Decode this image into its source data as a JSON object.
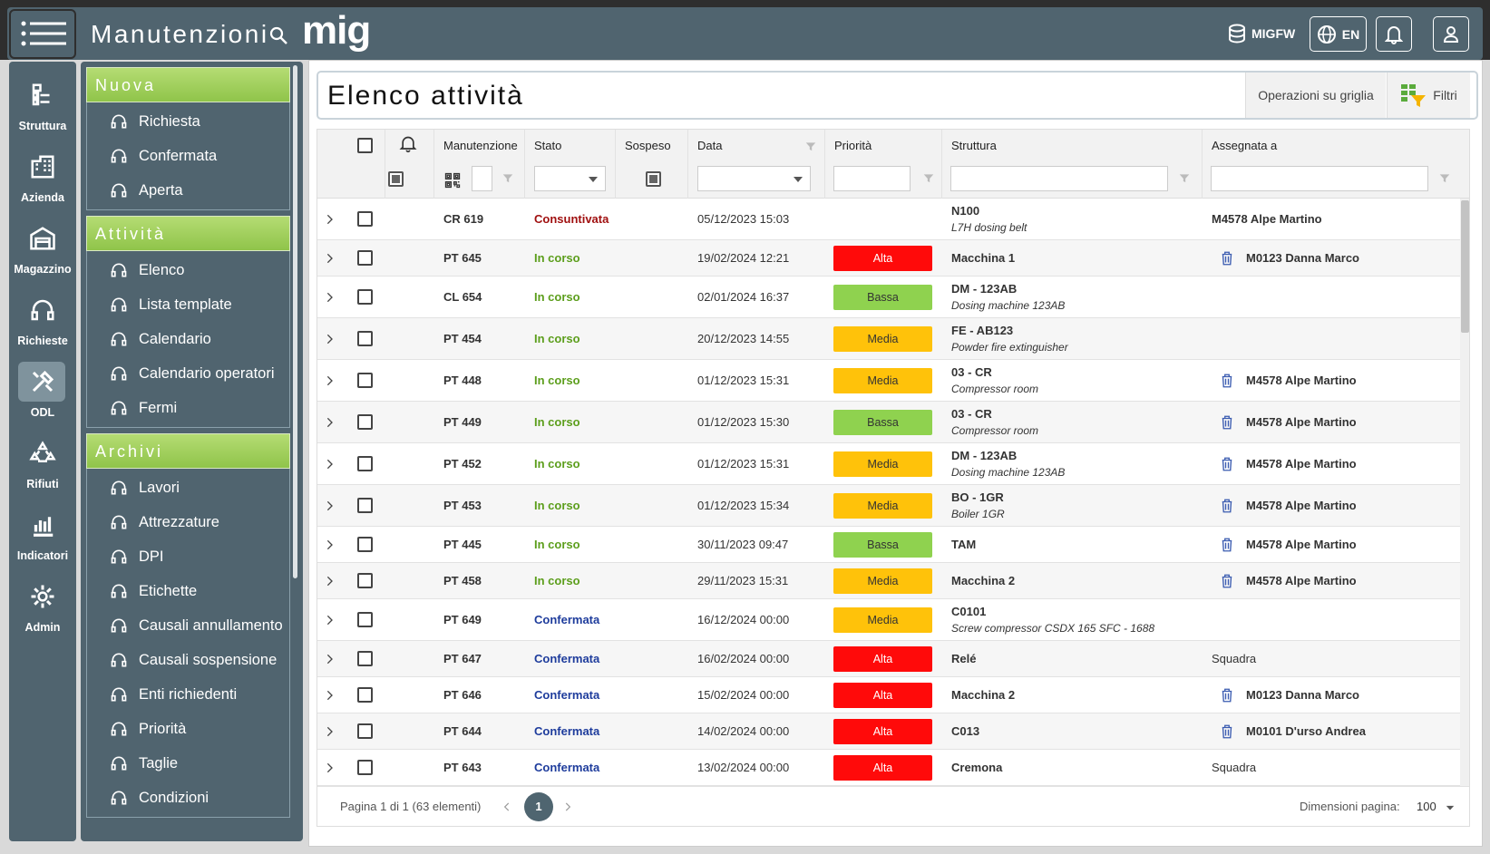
{
  "header": {
    "app_title": "Manutenzioni",
    "logo": "mig",
    "database": "MIGFW",
    "language": "EN"
  },
  "icon_bar": [
    {
      "label": "Struttura"
    },
    {
      "label": "Azienda"
    },
    {
      "label": "Magazzino"
    },
    {
      "label": "Richieste"
    },
    {
      "label": "ODL",
      "active": true
    },
    {
      "label": "Rifiuti"
    },
    {
      "label": "Indicatori"
    },
    {
      "label": "Admin"
    }
  ],
  "menu": [
    {
      "title": "Nuova",
      "items": [
        "Richiesta",
        "Confermata",
        "Aperta"
      ]
    },
    {
      "title": "Attività",
      "items": [
        "Elenco",
        "Lista template",
        "Calendario",
        "Calendario operatori",
        "Fermi"
      ]
    },
    {
      "title": "Archivi",
      "items": [
        "Lavori",
        "Attrezzature",
        "DPI",
        "Etichette",
        "Causali annullamento",
        "Causali sospensione",
        "Enti richiedenti",
        "Priorità",
        "Taglie",
        "Condizioni"
      ]
    }
  ],
  "page": {
    "title": "Elenco attività",
    "grid_operations": "Operazioni su griglia",
    "filters": "Filtri"
  },
  "table": {
    "columns": [
      "Manutenzione",
      "Stato",
      "Sospeso",
      "Data",
      "Priorità",
      "Struttura",
      "Assegnata a"
    ],
    "status_colors": {
      "Consuntivata": "#a01010",
      "In corso": "#5c9e1c",
      "Confermata": "#1e3c9c"
    },
    "priority_colors": {
      "Alta": "#ff0a0a",
      "Bassa": "#8fd24f",
      "Media": "#ffc20a"
    },
    "rows": [
      {
        "code": "CR 619",
        "status": "Consuntivata",
        "date": "05/12/2023 15:03",
        "priority": null,
        "structure": "N100",
        "detail": "L7H dosing belt",
        "assignee": "M4578 Alpe Martino",
        "assignee_icon": false
      },
      {
        "code": "PT 645",
        "status": "In corso",
        "date": "19/02/2024 12:21",
        "priority": "Alta",
        "structure": "Macchina 1",
        "detail": null,
        "assignee": "M0123 Danna Marco",
        "assignee_icon": true
      },
      {
        "code": "CL 654",
        "status": "In corso",
        "date": "02/01/2024 16:37",
        "priority": "Bassa",
        "structure": "DM - 123AB",
        "detail": "Dosing machine 123AB",
        "assignee": null,
        "assignee_icon": false
      },
      {
        "code": "PT 454",
        "status": "In corso",
        "date": "20/12/2023 14:55",
        "priority": "Media",
        "structure": "FE - AB123",
        "detail": "Powder fire extinguisher",
        "assignee": null,
        "assignee_icon": false
      },
      {
        "code": "PT 448",
        "status": "In corso",
        "date": "01/12/2023 15:31",
        "priority": "Media",
        "structure": "03 - CR",
        "detail": "Compressor room",
        "assignee": "M4578 Alpe Martino",
        "assignee_icon": true
      },
      {
        "code": "PT 449",
        "status": "In corso",
        "date": "01/12/2023 15:30",
        "priority": "Bassa",
        "structure": "03 - CR",
        "detail": "Compressor room",
        "assignee": "M4578 Alpe Martino",
        "assignee_icon": true
      },
      {
        "code": "PT 452",
        "status": "In corso",
        "date": "01/12/2023 15:31",
        "priority": "Media",
        "structure": "DM - 123AB",
        "detail": "Dosing machine 123AB",
        "assignee": "M4578 Alpe Martino",
        "assignee_icon": true
      },
      {
        "code": "PT 453",
        "status": "In corso",
        "date": "01/12/2023 15:34",
        "priority": "Media",
        "structure": "BO - 1GR",
        "detail": "Boiler 1GR",
        "assignee": "M4578 Alpe Martino",
        "assignee_icon": true
      },
      {
        "code": "PT 445",
        "status": "In corso",
        "date": "30/11/2023 09:47",
        "priority": "Bassa",
        "structure": "TAM",
        "detail": null,
        "assignee": "M4578 Alpe Martino",
        "assignee_icon": true
      },
      {
        "code": "PT 458",
        "status": "In corso",
        "date": "29/11/2023 15:31",
        "priority": "Media",
        "structure": "Macchina 2",
        "detail": null,
        "assignee": "M4578 Alpe Martino",
        "assignee_icon": true
      },
      {
        "code": "PT 649",
        "status": "Confermata",
        "date": "16/12/2024 00:00",
        "priority": "Media",
        "structure": "C0101",
        "detail": "Screw compressor CSDX 165 SFC - 1688",
        "assignee": null,
        "assignee_icon": false
      },
      {
        "code": "PT 647",
        "status": "Confermata",
        "date": "16/02/2024 00:00",
        "priority": "Alta",
        "structure": "Relé",
        "detail": null,
        "assignee": "Squadra",
        "assignee_icon": false
      },
      {
        "code": "PT 646",
        "status": "Confermata",
        "date": "15/02/2024 00:00",
        "priority": "Alta",
        "structure": "Macchina 2",
        "detail": null,
        "assignee": "M0123 Danna Marco",
        "assignee_icon": true
      },
      {
        "code": "PT 644",
        "status": "Confermata",
        "date": "14/02/2024 00:00",
        "priority": "Alta",
        "structure": "C013",
        "detail": null,
        "assignee": "M0101 D'urso Andrea",
        "assignee_icon": true
      },
      {
        "code": "PT 643",
        "status": "Confermata",
        "date": "13/02/2024 00:00",
        "priority": "Alta",
        "structure": "Cremona",
        "detail": null,
        "assignee": "Squadra",
        "assignee_icon": false
      }
    ]
  },
  "pager": {
    "summary": "Pagina 1 di 1 (63 elementi)",
    "current_page": "1",
    "page_size_label": "Dimensioni pagina:",
    "page_size": "100"
  }
}
